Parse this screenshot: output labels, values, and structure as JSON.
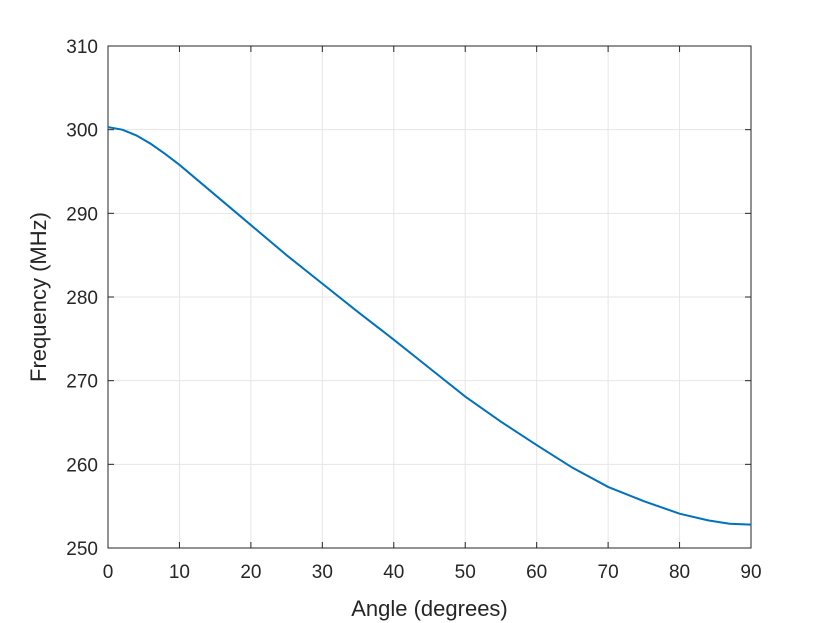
{
  "chart_data": {
    "type": "line",
    "title": "",
    "xlabel": "Angle (degrees)",
    "ylabel": "Frequency (MHz)",
    "xlim": [
      0,
      90
    ],
    "ylim": [
      250,
      310
    ],
    "xticks": [
      0,
      10,
      20,
      30,
      40,
      50,
      60,
      70,
      80,
      90
    ],
    "yticks": [
      250,
      260,
      270,
      280,
      290,
      300,
      310
    ],
    "xtick_labels": [
      "0",
      "10",
      "20",
      "30",
      "40",
      "50",
      "60",
      "70",
      "80",
      "90"
    ],
    "ytick_labels": [
      "250",
      "260",
      "270",
      "280",
      "290",
      "300",
      "310"
    ],
    "grid": true,
    "legend": "none",
    "colors": {
      "line": "#0072BD",
      "grid": "#e6e6e6",
      "axes": "#262626"
    },
    "series": [
      {
        "x": [
          0,
          2,
          4,
          6,
          8,
          10,
          15,
          20,
          25,
          30,
          35,
          40,
          45,
          50,
          55,
          60,
          65,
          70,
          75,
          80,
          84,
          87,
          90
        ],
        "values": [
          300.3,
          300.0,
          299.3,
          298.3,
          297.1,
          295.8,
          292.2,
          288.6,
          285.0,
          281.6,
          278.2,
          274.9,
          271.5,
          268.1,
          265.1,
          262.3,
          259.6,
          257.3,
          255.6,
          254.1,
          253.3,
          252.9,
          252.8
        ]
      }
    ]
  }
}
